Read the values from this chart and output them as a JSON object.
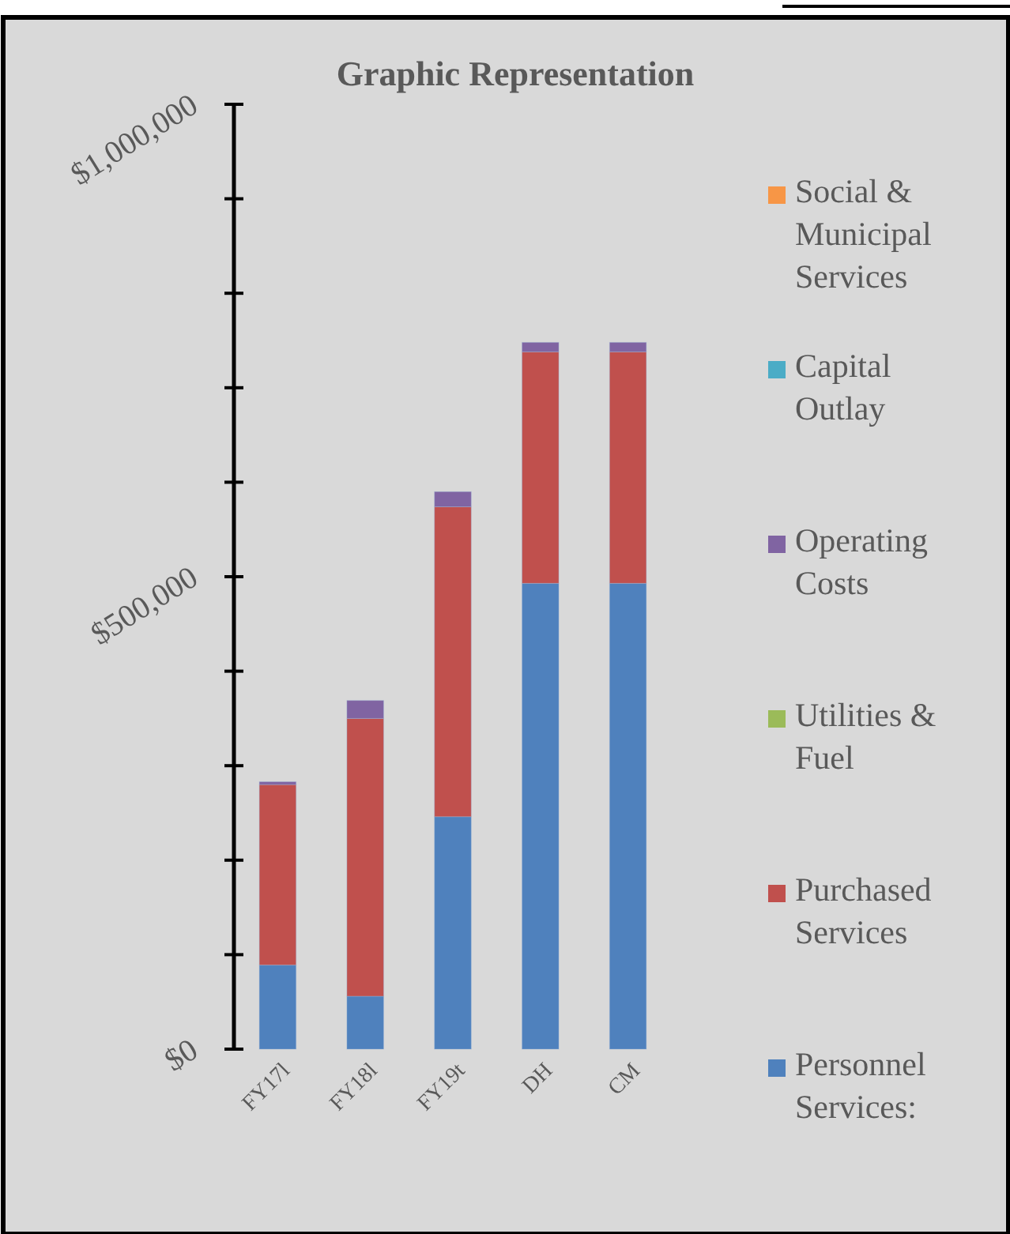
{
  "chart_data": {
    "type": "bar",
    "title": "Graphic Representation",
    "stacked": true,
    "categories": [
      "FY17l",
      "FY18l",
      "FY19t",
      "DH",
      "CM"
    ],
    "series": [
      {
        "name": "Personnel Services:",
        "color": "#4f81bd",
        "values": [
          89000,
          56000,
          246000,
          493000,
          493000
        ]
      },
      {
        "name": "Purchased Services",
        "color": "#c0504d",
        "values": [
          191000,
          294000,
          328000,
          245000,
          245000
        ]
      },
      {
        "name": "Utilities & Fuel",
        "color": "#9bbb59",
        "values": [
          0,
          0,
          0,
          0,
          0
        ]
      },
      {
        "name": "Operating Costs",
        "color": "#8064a2",
        "values": [
          3000,
          19000,
          16000,
          10000,
          10000
        ]
      },
      {
        "name": "Capital Outlay",
        "color": "#4bacc6",
        "values": [
          0,
          0,
          0,
          0,
          0
        ]
      },
      {
        "name": "Social & Municipal Services",
        "color": "#f79646",
        "values": [
          0,
          0,
          0,
          0,
          0
        ]
      }
    ],
    "ylim": [
      0,
      1000000
    ],
    "yticks": [
      {
        "value": 0,
        "label": "$0"
      },
      {
        "value": 100000,
        "label": null
      },
      {
        "value": 200000,
        "label": null
      },
      {
        "value": 300000,
        "label": null
      },
      {
        "value": 400000,
        "label": null
      },
      {
        "value": 500000,
        "label": "$500,000"
      },
      {
        "value": 600000,
        "label": null
      },
      {
        "value": 700000,
        "label": null
      },
      {
        "value": 800000,
        "label": null
      },
      {
        "value": 900000,
        "label": null
      },
      {
        "value": 1000000,
        "label": "$1,000,000"
      }
    ],
    "legend": "right"
  }
}
